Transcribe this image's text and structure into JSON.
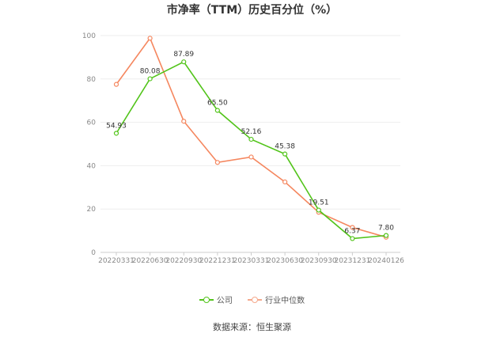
{
  "chart_data": {
    "type": "line",
    "title": "市净率（TTM）历史百分位（%）",
    "categories": [
      "20220331",
      "20220630",
      "20220930",
      "20221231",
      "20230331",
      "20230630",
      "20230930",
      "20231231",
      "20240126"
    ],
    "ylim": [
      0,
      100
    ],
    "yticks": [
      "0",
      "20",
      "40",
      "60",
      "80",
      "100"
    ],
    "grid": true,
    "legend_position": "bottom",
    "series": [
      {
        "name": "公司",
        "color": "#52c41a",
        "values": [
          54.93,
          80.08,
          87.89,
          65.5,
          52.16,
          45.38,
          19.51,
          6.37,
          7.8
        ],
        "labels": [
          "54.93",
          "80.08",
          "87.89",
          "65.50",
          "52.16",
          "45.38",
          "19.51",
          "6.37",
          "7.80"
        ]
      },
      {
        "name": "行业中位数",
        "color": "#f5875f",
        "values": [
          77.5,
          98.8,
          60.5,
          41.5,
          44.0,
          32.5,
          18.5,
          11.5,
          7.0
        ]
      }
    ]
  },
  "source": "数据来源：恒生聚源"
}
